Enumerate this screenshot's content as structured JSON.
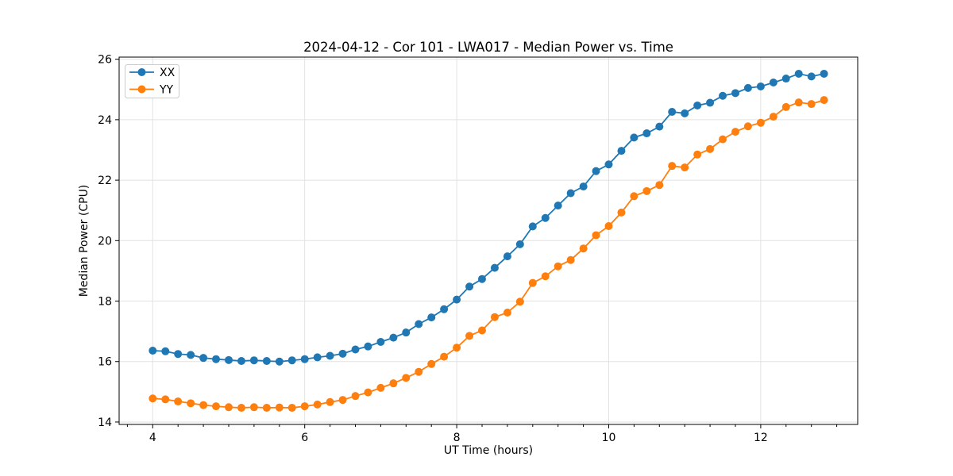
{
  "chart_data": {
    "type": "line",
    "title": "2024-04-12 - Cor 101 - LWA017 - Median Power vs. Time",
    "xlabel": "UT Time (hours)",
    "ylabel": "Median Power (CPU)",
    "legend_position": "upper left",
    "grid": true,
    "marker": "o",
    "xlim": [
      3.558,
      13.276
    ],
    "ylim": [
      13.92,
      26.07
    ],
    "xticks": [
      4,
      6,
      8,
      10,
      12
    ],
    "yticks": [
      14,
      16,
      18,
      20,
      22,
      24,
      26
    ],
    "x_minor_tick_interval_hours": 0.3333,
    "x": [
      4,
      4.167,
      4.333,
      4.5,
      4.667,
      4.833,
      5,
      5.167,
      5.333,
      5.5,
      5.667,
      5.833,
      6,
      6.167,
      6.333,
      6.5,
      6.667,
      6.833,
      7,
      7.167,
      7.333,
      7.5,
      7.667,
      7.833,
      8,
      8.167,
      8.333,
      8.5,
      8.667,
      8.833,
      9,
      9.167,
      9.333,
      9.5,
      9.667,
      9.833,
      10,
      10.167,
      10.333,
      10.5,
      10.667,
      10.833,
      11,
      11.167,
      11.333,
      11.5,
      11.667,
      11.833,
      12,
      12.167,
      12.333,
      12.5,
      12.667,
      12.833
    ],
    "series": [
      {
        "name": "XX",
        "color": "#1f77b4",
        "values": [
          16.36,
          16.34,
          16.25,
          16.22,
          16.12,
          16.08,
          16.05,
          16.02,
          16.04,
          16.02,
          16.0,
          16.04,
          16.08,
          16.14,
          16.19,
          16.26,
          16.4,
          16.5,
          16.65,
          16.79,
          16.96,
          17.24,
          17.46,
          17.73,
          18.05,
          18.48,
          18.73,
          19.1,
          19.48,
          19.88,
          20.47,
          20.75,
          21.16,
          21.57,
          21.79,
          22.3,
          22.52,
          22.97,
          23.41,
          23.55,
          23.77,
          24.26,
          24.21,
          24.47,
          24.56,
          24.79,
          24.88,
          25.05,
          25.1,
          25.23,
          25.36,
          25.52,
          25.43,
          25.52
        ]
      },
      {
        "name": "YY",
        "color": "#ff7f0e",
        "values": [
          14.78,
          14.75,
          14.68,
          14.62,
          14.56,
          14.52,
          14.49,
          14.47,
          14.49,
          14.47,
          14.48,
          14.47,
          14.52,
          14.58,
          14.66,
          14.73,
          14.86,
          14.98,
          15.13,
          15.28,
          15.46,
          15.66,
          15.92,
          16.16,
          16.46,
          16.85,
          17.03,
          17.47,
          17.62,
          17.98,
          18.6,
          18.82,
          19.15,
          19.36,
          19.74,
          20.18,
          20.48,
          20.93,
          21.47,
          21.64,
          21.84,
          22.47,
          22.42,
          22.85,
          23.03,
          23.35,
          23.6,
          23.78,
          23.9,
          24.1,
          24.42,
          24.57,
          24.52,
          24.65
        ]
      }
    ]
  }
}
